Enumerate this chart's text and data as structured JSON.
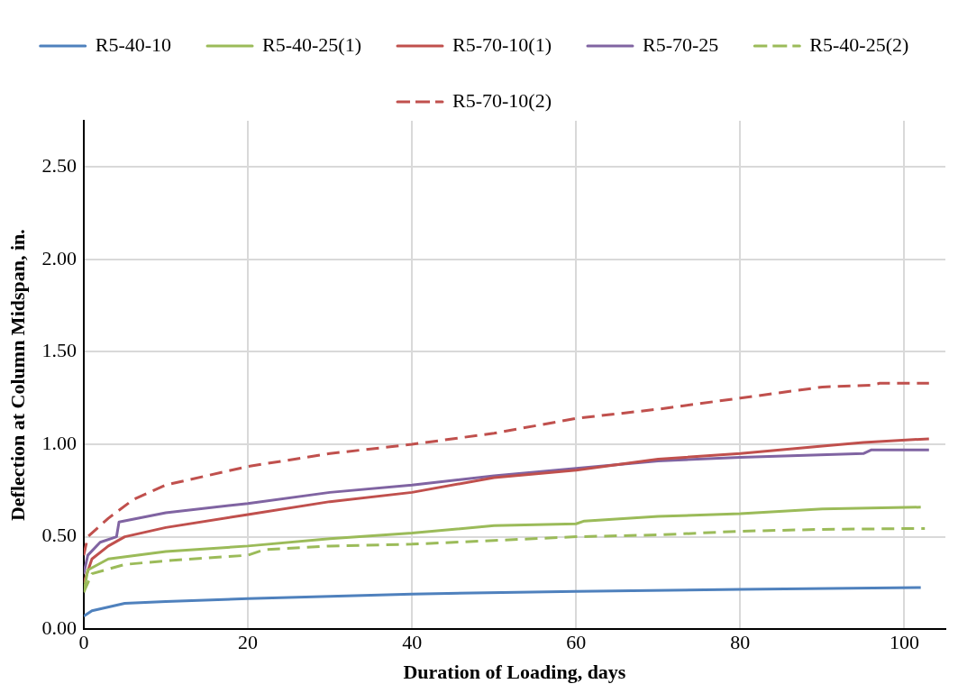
{
  "chart_data": {
    "type": "line",
    "xlabel": "Duration of Loading, days",
    "ylabel": "Deflection at Column Midspan, in.",
    "xlim": [
      0,
      105
    ],
    "xticks": [
      0,
      20,
      40,
      60,
      80,
      100
    ],
    "ylim": [
      0,
      2.75
    ],
    "yticks": [
      {
        "value": 0,
        "label": "0.00"
      },
      {
        "value": 0.5,
        "label": "0.50"
      },
      {
        "value": 1,
        "label": "1.00"
      },
      {
        "value": 1.5,
        "label": "1.50"
      },
      {
        "value": 2,
        "label": "2.00"
      },
      {
        "value": 2.5,
        "label": "2.50"
      }
    ],
    "grid": true,
    "legend": "top",
    "marker": "none",
    "series": [
      {
        "name": "R5-40-10",
        "color": "#4f81bd",
        "line_style": "solid",
        "x": [
          0,
          1,
          5,
          10,
          20,
          40,
          60,
          80,
          102
        ],
        "values": [
          0.07,
          0.1,
          0.14,
          0.15,
          0.165,
          0.19,
          0.205,
          0.215,
          0.225
        ]
      },
      {
        "name": "R5-40-25(1)",
        "color": "#9bbb59",
        "line_style": "solid",
        "x": [
          0,
          0.5,
          3,
          10,
          20,
          30,
          40,
          50,
          60,
          61,
          70,
          80,
          90,
          102
        ],
        "values": [
          0.2,
          0.32,
          0.38,
          0.42,
          0.45,
          0.49,
          0.52,
          0.56,
          0.57,
          0.585,
          0.61,
          0.625,
          0.65,
          0.66
        ]
      },
      {
        "name": "R5-70-10(1)",
        "color": "#c0504d",
        "line_style": "solid",
        "x": [
          0,
          1,
          3,
          5,
          10,
          20,
          30,
          40,
          50,
          60,
          70,
          80,
          90,
          95,
          103
        ],
        "values": [
          0.25,
          0.38,
          0.45,
          0.5,
          0.55,
          0.62,
          0.69,
          0.74,
          0.82,
          0.86,
          0.92,
          0.95,
          0.99,
          1.01,
          1.03
        ]
      },
      {
        "name": "R5-70-25",
        "color": "#8064a2",
        "line_style": "solid",
        "x": [
          0,
          0.5,
          2,
          4,
          4.3,
          10,
          20,
          30,
          40,
          50,
          60,
          70,
          80,
          95,
          96,
          103
        ],
        "values": [
          0.3,
          0.4,
          0.47,
          0.5,
          0.58,
          0.63,
          0.68,
          0.74,
          0.78,
          0.83,
          0.87,
          0.91,
          0.93,
          0.95,
          0.97,
          0.97
        ]
      },
      {
        "name": "R5-40-25(2)",
        "color": "#9bbb59",
        "line_style": "dashed",
        "x": [
          0,
          1,
          5,
          10,
          20,
          22,
          30,
          40,
          50,
          60,
          70,
          80,
          90,
          102.5
        ],
        "values": [
          0.2,
          0.3,
          0.35,
          0.37,
          0.4,
          0.43,
          0.45,
          0.46,
          0.48,
          0.5,
          0.51,
          0.53,
          0.54,
          0.545
        ]
      },
      {
        "name": "R5-70-10(2)",
        "color": "#c0504d",
        "line_style": "dashed",
        "x": [
          0,
          0.5,
          3,
          6,
          10,
          20,
          30,
          40,
          50,
          60,
          70,
          80,
          90,
          96,
          97,
          103
        ],
        "values": [
          0.4,
          0.5,
          0.6,
          0.7,
          0.78,
          0.88,
          0.95,
          1,
          1.06,
          1.14,
          1.19,
          1.25,
          1.31,
          1.32,
          1.33,
          1.33
        ]
      }
    ]
  }
}
